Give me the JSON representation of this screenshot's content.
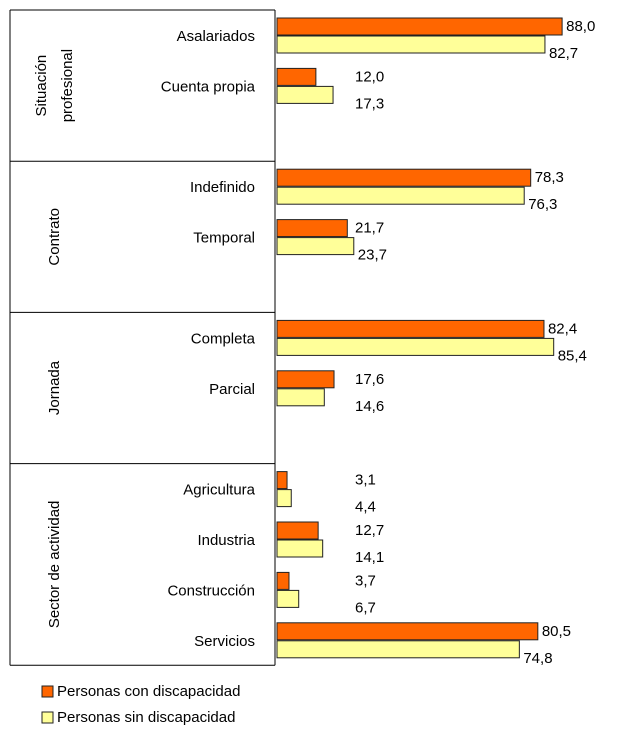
{
  "chart_data": {
    "type": "bar",
    "groups": [
      {
        "label": "Situación profesional",
        "categories": [
          "Asalariados",
          "Cuenta propia"
        ]
      },
      {
        "label": "Contrato",
        "categories": [
          "Indefinido",
          "Temporal"
        ]
      },
      {
        "label": "Jornada",
        "categories": [
          "Completa",
          "Parcial"
        ]
      },
      {
        "label": "Sector de actividad",
        "categories": [
          "Agricultura",
          "Industria",
          "Construcción",
          "Servicios"
        ]
      }
    ],
    "series": [
      {
        "name": "Personas con discapacidad",
        "color": "#ff6600",
        "values": [
          88.0,
          12.0,
          78.3,
          21.7,
          82.4,
          17.6,
          3.1,
          12.7,
          3.7,
          80.5
        ],
        "value_labels": [
          "88,0",
          "12,0",
          "78,3",
          "21,7",
          "82,4",
          "17,6",
          "3,1",
          "12,7",
          "3,7",
          "80,5"
        ]
      },
      {
        "name": "Personas sin discapacidad",
        "color": "#ffff99",
        "values": [
          82.7,
          17.3,
          76.3,
          23.7,
          85.4,
          14.6,
          4.4,
          14.1,
          6.7,
          74.8
        ],
        "value_labels": [
          "82,7",
          "17,3",
          "76,3",
          "23,7",
          "85,4",
          "14,6",
          "4,4",
          "14,1",
          "6,7",
          "74,8"
        ]
      }
    ],
    "legend": "bottom-left"
  }
}
